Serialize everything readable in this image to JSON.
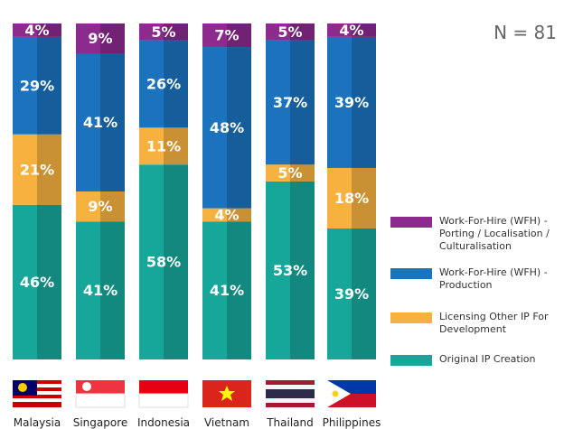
{
  "chart_data": {
    "type": "stacked_bar",
    "annotation": "N = 81",
    "categories": [
      "Malaysia",
      "Singapore",
      "Indonesia",
      "Vietnam",
      "Thailand",
      "Philippines"
    ],
    "ylim": [
      0,
      100
    ],
    "series": [
      {
        "name": "Original IP Creation",
        "color": "#17a69a",
        "values": [
          46,
          41,
          58,
          41,
          53,
          39
        ],
        "value_labels": [
          "46%",
          "41%",
          "58%",
          "41%",
          "53%",
          "39%"
        ]
      },
      {
        "name": "Licensing Other IP For Development",
        "color": "#f6b13f",
        "values": [
          21,
          9,
          11,
          4,
          5,
          18
        ],
        "value_labels": [
          "21%",
          "9%",
          "11%",
          "4%",
          "5%",
          "18%"
        ]
      },
      {
        "name": "Work-For-Hire (WFH) - Production",
        "color": "#1b73bd",
        "values": [
          29,
          41,
          26,
          48,
          37,
          39
        ],
        "value_labels": [
          "29%",
          "41%",
          "26%",
          "48%",
          "37%",
          "39%"
        ]
      },
      {
        "name": "Work-For-Hire (WFH) - Porting / Localisation / Culturalisation",
        "color": "#8c2a8e",
        "values": [
          4,
          9,
          5,
          7,
          5,
          4
        ],
        "value_labels": [
          "4%",
          "9%",
          "5%",
          "7%",
          "5%",
          "4%"
        ]
      }
    ]
  }
}
